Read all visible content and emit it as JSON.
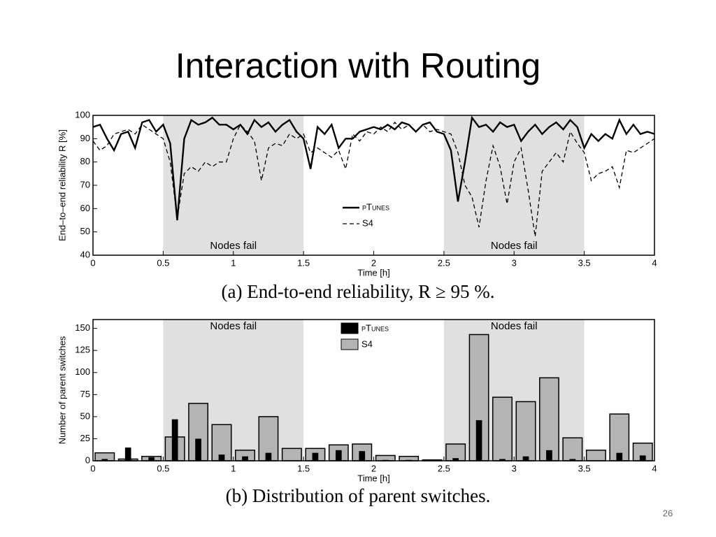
{
  "title": "Interaction with Routing",
  "page_number": "26",
  "chart_data": [
    {
      "type": "line",
      "caption": "(a) End-to-end reliability, R ≥ 95 %.",
      "xlabel": "Time [h]",
      "ylabel": "End–to–end reliability R [%]",
      "xlim": [
        0,
        4
      ],
      "ylim": [
        40,
        100
      ],
      "xticks": [
        0,
        0.5,
        1,
        1.5,
        2,
        2.5,
        3,
        3.5,
        4
      ],
      "yticks": [
        40,
        50,
        60,
        70,
        80,
        90,
        100
      ],
      "shaded_regions": [
        {
          "from": 0.5,
          "to": 1.5,
          "label": "Nodes fail"
        },
        {
          "from": 2.5,
          "to": 3.5,
          "label": "Nodes fail"
        }
      ],
      "shade_color": "#e0e0e0",
      "x": [
        0,
        0.05,
        0.1,
        0.15,
        0.2,
        0.25,
        0.3,
        0.35,
        0.4,
        0.45,
        0.5,
        0.55,
        0.6,
        0.65,
        0.7,
        0.75,
        0.8,
        0.85,
        0.9,
        0.95,
        1,
        1.05,
        1.1,
        1.15,
        1.2,
        1.25,
        1.3,
        1.35,
        1.4,
        1.45,
        1.5,
        1.55,
        1.6,
        1.65,
        1.7,
        1.75,
        1.8,
        1.85,
        1.9,
        1.95,
        2,
        2.05,
        2.1,
        2.15,
        2.2,
        2.25,
        2.3,
        2.35,
        2.4,
        2.45,
        2.5,
        2.55,
        2.6,
        2.65,
        2.7,
        2.75,
        2.8,
        2.85,
        2.9,
        2.95,
        3,
        3.05,
        3.1,
        3.15,
        3.2,
        3.25,
        3.3,
        3.35,
        3.4,
        3.45,
        3.5,
        3.55,
        3.6,
        3.65,
        3.7,
        3.75,
        3.8,
        3.85,
        3.9,
        3.95,
        4
      ],
      "series": [
        {
          "name": "pTunes",
          "color": "#000000",
          "dash": false,
          "values": [
            95,
            96,
            90,
            85,
            92,
            93,
            86,
            97,
            98,
            93,
            96,
            88,
            55,
            90,
            98,
            96,
            97,
            99,
            96,
            96,
            94,
            96,
            92,
            98,
            95,
            97,
            93,
            96,
            98,
            93,
            90,
            77,
            95,
            92,
            96,
            86,
            90,
            90,
            93,
            94,
            95,
            94,
            96,
            94,
            97,
            96,
            93,
            96,
            97,
            93,
            92,
            85,
            63,
            80,
            99,
            95,
            96,
            93,
            97,
            95,
            96,
            89,
            93,
            96,
            92,
            95,
            97,
            94,
            98,
            95,
            86,
            92,
            89,
            92,
            90,
            98,
            92,
            96,
            92,
            93,
            92
          ]
        },
        {
          "name": "S4",
          "color": "#000000",
          "dash": true,
          "values": [
            89,
            85,
            87,
            92,
            93,
            94,
            92,
            96,
            94,
            92,
            90,
            80,
            56,
            75,
            78,
            76,
            80,
            78,
            80,
            80,
            90,
            96,
            93,
            89,
            72,
            86,
            88,
            87,
            92,
            90,
            92,
            84,
            86,
            84,
            82,
            85,
            77,
            92,
            89,
            93,
            92,
            95,
            93,
            97,
            94,
            96,
            93,
            96,
            93,
            94,
            93,
            92,
            84,
            70,
            65,
            52,
            72,
            87,
            78,
            62,
            80,
            86,
            68,
            48,
            76,
            80,
            84,
            80,
            93,
            88,
            84,
            72,
            75,
            76,
            78,
            69,
            85,
            84,
            86,
            88,
            90
          ]
        }
      ]
    },
    {
      "type": "histogram",
      "caption": "(b) Distribution of parent switches.",
      "xlabel": "Time [h]",
      "ylabel": "Number of parent switches",
      "xlim": [
        0,
        4
      ],
      "ylim": [
        0,
        160
      ],
      "xticks": [
        0,
        0.5,
        1,
        1.5,
        2,
        2.5,
        3,
        3.5,
        4
      ],
      "yticks": [
        0,
        25,
        50,
        75,
        100,
        125,
        150
      ],
      "shaded_regions": [
        {
          "from": 0.5,
          "to": 1.5,
          "label": "Nodes fail"
        },
        {
          "from": 2.5,
          "to": 3.5,
          "label": "Nodes fail"
        }
      ],
      "shade_color": "#e0e0e0",
      "bins": [
        0,
        0.167,
        0.333,
        0.5,
        0.667,
        0.833,
        1,
        1.167,
        1.333,
        1.5,
        1.667,
        1.833,
        2,
        2.167,
        2.333,
        2.5,
        2.667,
        2.833,
        3,
        3.167,
        3.333,
        3.5,
        3.667,
        3.833,
        4
      ],
      "series": [
        {
          "name": "pTunes",
          "color": "#000000",
          "values": [
            2,
            15,
            4,
            47,
            25,
            7,
            5,
            9,
            0,
            9,
            12,
            11,
            1,
            1,
            0,
            3,
            46,
            2,
            5,
            12,
            2,
            0,
            9,
            6
          ]
        },
        {
          "name": "S4",
          "color": "#b4b4b4",
          "values": [
            9,
            2,
            5,
            27,
            65,
            41,
            12,
            50,
            14,
            14,
            18,
            19,
            6,
            5,
            1,
            19,
            143,
            72,
            67,
            94,
            26,
            12,
            53,
            20
          ]
        }
      ]
    }
  ]
}
